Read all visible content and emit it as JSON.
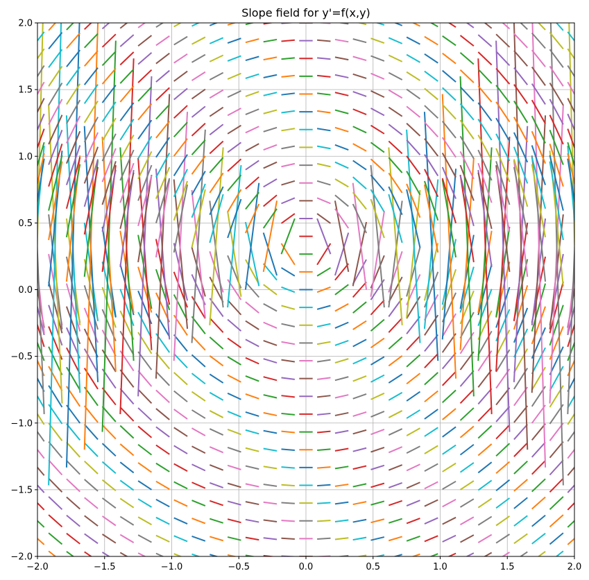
{
  "chart_data": {
    "type": "line",
    "title": "Slope field for y'=f(x,y)",
    "xlabel": "",
    "ylabel": "",
    "xlim": [
      -2.0,
      2.0
    ],
    "ylim": [
      -2.0,
      2.0
    ],
    "grid": true,
    "legend": "none",
    "x_tick_values": [
      -2.0,
      -1.5,
      -1.0,
      -0.5,
      0.0,
      0.5,
      1.0,
      1.5,
      2.0
    ],
    "x_tick_labels": [
      "−2.0",
      "−1.5",
      "−1.0",
      "−0.5",
      "0.0",
      "0.5",
      "1.0",
      "1.5",
      "2.0"
    ],
    "y_tick_values": [
      -2.0,
      -1.5,
      -1.0,
      -0.5,
      0.0,
      0.5,
      1.0,
      1.5,
      2.0
    ],
    "y_tick_labels": [
      "−2.0",
      "−1.5",
      "−1.0",
      "−0.5",
      "0.0",
      "0.5",
      "1.0",
      "1.5",
      "2.0"
    ],
    "slope_function": "x / (0.35 - y)",
    "field_grid": {
      "x_start": -2.0,
      "x_end": 2.0,
      "x_count": 31,
      "y_start": -2.0,
      "y_end": 2.0,
      "y_count": 31,
      "dx_half": 0.05
    },
    "colors": [
      "#1f77b4",
      "#ff7f0e",
      "#2ca02c",
      "#d62728",
      "#9467bd",
      "#8c564b",
      "#e377c2",
      "#7f7f7f",
      "#bcbd22",
      "#17becf"
    ]
  }
}
